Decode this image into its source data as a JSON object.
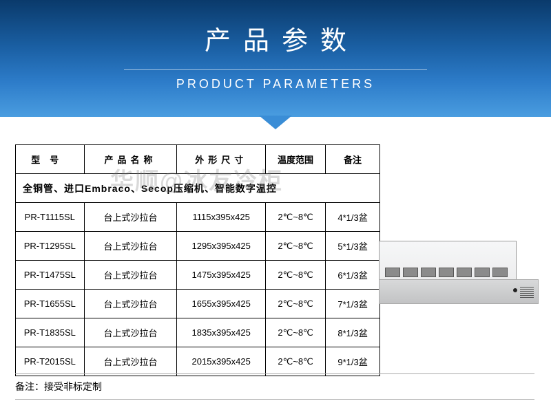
{
  "header": {
    "title_cn": "产品参数",
    "title_en": "PRODUCT PARAMETERS",
    "bg_gradient": [
      "#0a3a6b",
      "#1a5fa3",
      "#2d7cc9",
      "#4a9de0"
    ]
  },
  "table": {
    "columns": [
      "型号",
      "产品名称",
      "外形尺寸",
      "温度范围",
      "备注"
    ],
    "spec_line": "全铜管、进口Embraco、Secop压缩机、智能数字温控",
    "rows": [
      {
        "model": "PR-T1115SL",
        "name": "台上式沙拉台",
        "size": "1115x395x425",
        "temp": "2℃~8℃",
        "note": "4*1/3盆"
      },
      {
        "model": "PR-T1295SL",
        "name": "台上式沙拉台",
        "size": "1295x395x425",
        "temp": "2℃~8℃",
        "note": "5*1/3盆"
      },
      {
        "model": "PR-T1475SL",
        "name": "台上式沙拉台",
        "size": "1475x395x425",
        "temp": "2℃~8℃",
        "note": "6*1/3盆"
      },
      {
        "model": "PR-T1655SL",
        "name": "台上式沙拉台",
        "size": "1655x395x425",
        "temp": "2℃~8℃",
        "note": "7*1/3盆"
      },
      {
        "model": "PR-T1835SL",
        "name": "台上式沙拉台",
        "size": "1835x395x425",
        "temp": "2℃~8℃",
        "note": "8*1/3盆"
      },
      {
        "model": "PR-T2015SL",
        "name": "台上式沙拉台",
        "size": "2015x395x425",
        "temp": "2℃~8℃",
        "note": "9*1/3盆"
      }
    ]
  },
  "watermark": "华顺@冰友冷柜",
  "footnote": "备注：接受非标定制",
  "colors": {
    "border": "#000000",
    "text": "#000000",
    "watermark": "rgba(120,120,120,0.28)"
  }
}
